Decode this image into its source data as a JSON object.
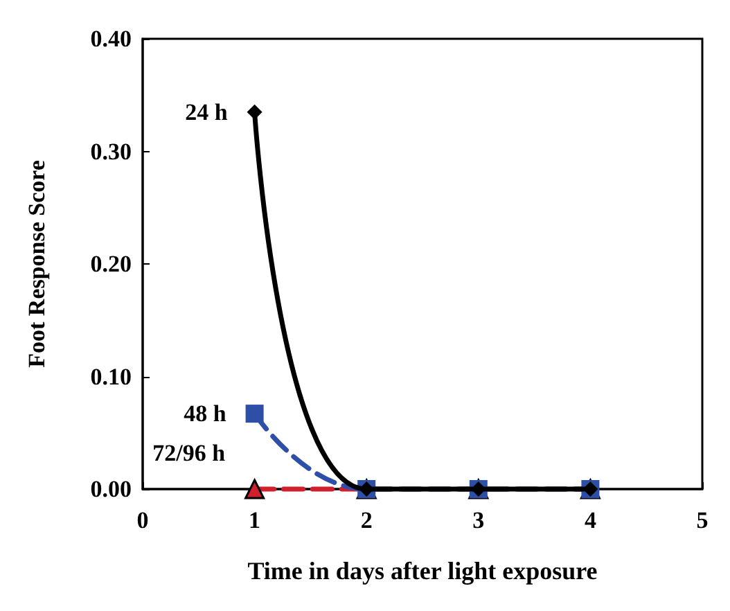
{
  "chart_data": {
    "type": "line",
    "xlabel": "Time in days after light exposure",
    "ylabel": "Foot Response Score",
    "x": [
      1,
      2,
      3,
      4
    ],
    "series": [
      {
        "name": "24 h",
        "color": "#000000",
        "values": [
          0.335,
          0,
          0,
          0
        ],
        "marker": "diamond",
        "line_style": "solid"
      },
      {
        "name": "48 h",
        "color": "#2e4fa8",
        "values": [
          0.067,
          0,
          0,
          0
        ],
        "marker": "square",
        "line_style": "dashed"
      },
      {
        "name": "72/96 h",
        "color": "#d0202e",
        "values": [
          0,
          0,
          0,
          0
        ],
        "marker": "triangle",
        "line_style": "dashed"
      }
    ],
    "xlim": [
      0,
      5
    ],
    "xticks": [
      0,
      1,
      2,
      3,
      4,
      5
    ],
    "ylim": [
      0,
      0.4
    ],
    "yticks": [
      {
        "value": 0,
        "label": "0.00"
      },
      {
        "value": 0.1,
        "label": "0.10"
      },
      {
        "value": 0.2,
        "label": "0.20"
      },
      {
        "value": 0.3,
        "label": "0.30"
      },
      {
        "value": 0.4,
        "label": "0.40"
      }
    ],
    "grid": false
  }
}
